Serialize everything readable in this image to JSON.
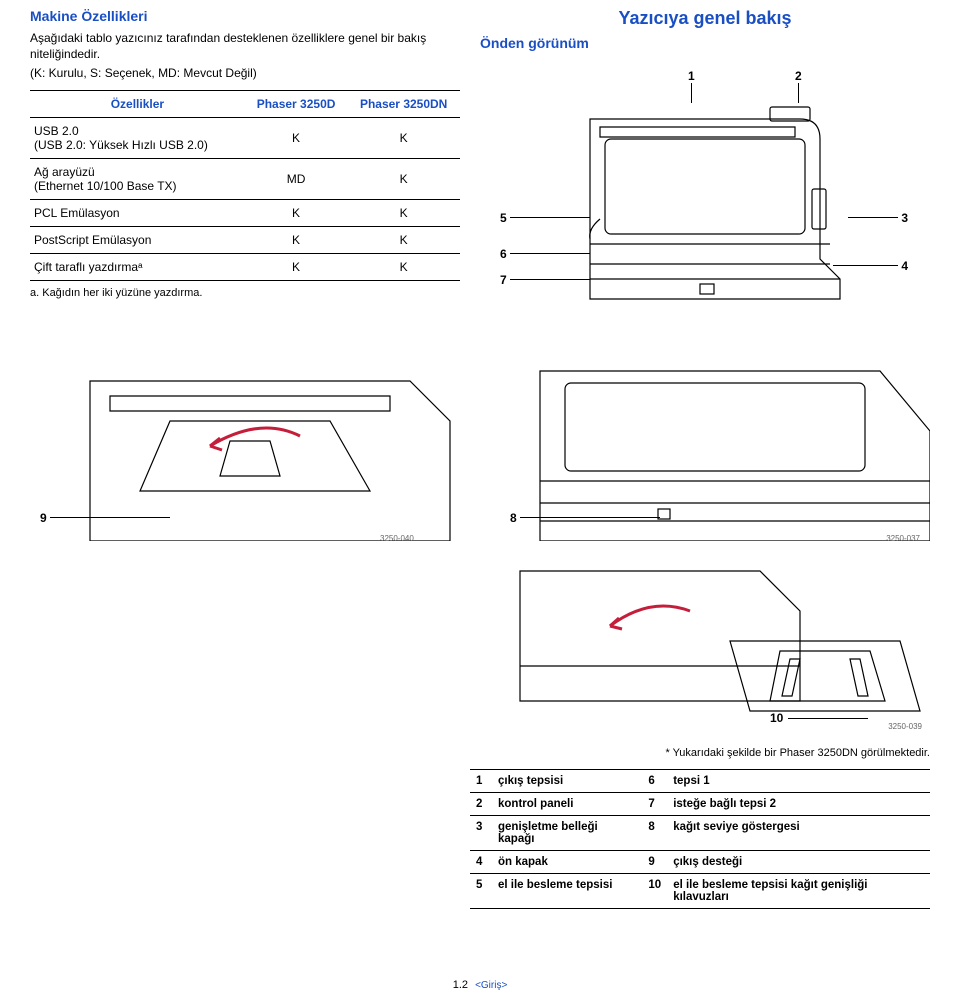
{
  "colors": {
    "accent": "#1a4fc4",
    "text": "#000000",
    "bg": "#ffffff",
    "rule": "#000000",
    "figid": "#666666",
    "arrow": "#c41e3a"
  },
  "left": {
    "title": "Makine Özellikleri",
    "desc": "Aşağıdaki tablo yazıcınız tarafından desteklenen özelliklere genel bir bakış niteliğindedir.",
    "legend": "(K: Kurulu, S: Seçenek, MD: Mevcut Değil)",
    "table": {
      "headers": [
        "Özellikler",
        "Phaser 3250D",
        "Phaser 3250DN"
      ],
      "rows": [
        [
          "USB 2.0\n(USB 2.0: Yüksek Hızlı USB 2.0)",
          "K",
          "K"
        ],
        [
          "Ağ arayüzü\n(Ethernet 10/100 Base TX)",
          "MD",
          "K"
        ],
        [
          "PCL Emülasyon",
          "K",
          "K"
        ],
        [
          "PostScript Emülasyon",
          "K",
          "K"
        ],
        [
          "Çift taraflı yazdırmaᵃ",
          "K",
          "K"
        ]
      ]
    },
    "footnote": "a. Kağıdın her iki yüzüne yazdırma."
  },
  "right": {
    "overview_title": "Yazıcıya genel bakış",
    "subsection": "Önden görünüm",
    "callouts": [
      "1",
      "2",
      "3",
      "4",
      "5",
      "6",
      "7",
      "8",
      "9",
      "10"
    ],
    "fig_ids": [
      "3250-037",
      "3250-040",
      "3250-039"
    ],
    "caption": "* Yukarıdaki şekilde bir Phaser 3250DN görülmektedir.",
    "parts": [
      {
        "n": "1",
        "t": "çıkış tepsisi",
        "n2": "6",
        "t2": "tepsi 1"
      },
      {
        "n": "2",
        "t": "kontrol paneli",
        "n2": "7",
        "t2": "isteğe bağlı tepsi 2"
      },
      {
        "n": "3",
        "t": "genişletme belleği kapağı",
        "n2": "8",
        "t2": "kağıt seviye göstergesi"
      },
      {
        "n": "4",
        "t": "ön kapak",
        "n2": "9",
        "t2": "çıkış desteği"
      },
      {
        "n": "5",
        "t": "el ile besleme tepsisi",
        "n2": "10",
        "t2": "el ile besleme tepsisi kağıt genişliği kılavuzları"
      }
    ]
  },
  "footer": {
    "page": "1.2",
    "chapter": "<Giriş>"
  }
}
